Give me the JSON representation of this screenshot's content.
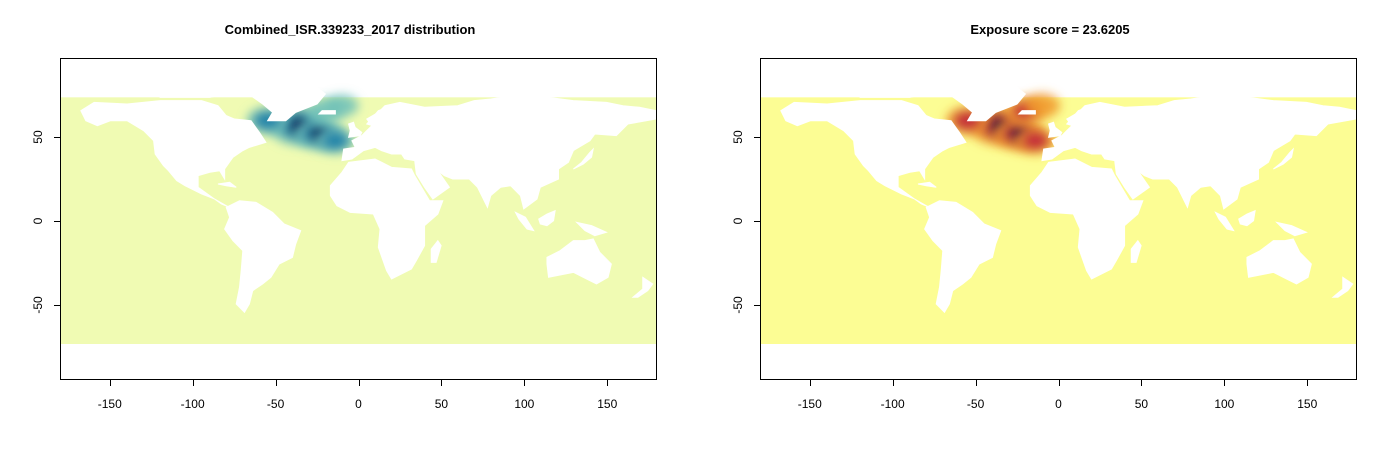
{
  "chart_data": [
    {
      "type": "heatmap",
      "title": "Combined_ISR.339233_2017 distribution",
      "xlabel": "",
      "ylabel": "",
      "xlim": [
        -180,
        180
      ],
      "ylim": [
        -95,
        97
      ],
      "x_ticks": [
        "-150",
        "-100",
        "-50",
        "0",
        "50",
        "100",
        "150"
      ],
      "y_ticks": [
        "50",
        "0",
        "-50"
      ],
      "x_tick_values": [
        -150,
        -100,
        -50,
        0,
        50,
        100,
        150
      ],
      "y_tick_values": [
        50,
        0,
        -50
      ],
      "ocean_color": "#f0fbb3",
      "land_color": "#ffffff",
      "hotspot_palette": [
        "#6cc0b8",
        "#1d7fa8",
        "#0b1b5a"
      ],
      "hotspots": [
        {
          "lon": -36,
          "lat": 57,
          "intensity": 1.0
        },
        {
          "lon": -55,
          "lat": 60,
          "intensity": 0.5
        },
        {
          "lon": -24,
          "lat": 52,
          "intensity": 0.7
        },
        {
          "lon": -14,
          "lat": 48,
          "intensity": 0.45
        },
        {
          "lon": -20,
          "lat": 66,
          "intensity": 0.35
        },
        {
          "lon": -10,
          "lat": 69,
          "intensity": 0.25
        }
      ]
    },
    {
      "type": "heatmap",
      "title": "Exposure score = 23.6205",
      "xlabel": "",
      "ylabel": "",
      "xlim": [
        -180,
        180
      ],
      "ylim": [
        -95,
        97
      ],
      "x_ticks": [
        "-150",
        "-100",
        "-50",
        "0",
        "50",
        "100",
        "150"
      ],
      "y_ticks": [
        "50",
        "0",
        "-50"
      ],
      "x_tick_values": [
        -150,
        -100,
        -50,
        0,
        50,
        100,
        150
      ],
      "y_tick_values": [
        50,
        0,
        -50
      ],
      "ocean_color": "#fcfd94",
      "land_color": "#ffffff",
      "hotspot_palette": [
        "#f0962a",
        "#c2243a",
        "#1b0b3d"
      ],
      "hotspots": [
        {
          "lon": -36,
          "lat": 57,
          "intensity": 1.0
        },
        {
          "lon": -55,
          "lat": 60,
          "intensity": 0.55
        },
        {
          "lon": -24,
          "lat": 52,
          "intensity": 0.75
        },
        {
          "lon": -14,
          "lat": 48,
          "intensity": 0.5
        },
        {
          "lon": -20,
          "lat": 66,
          "intensity": 0.45
        },
        {
          "lon": -10,
          "lat": 69,
          "intensity": 0.35
        }
      ]
    }
  ]
}
